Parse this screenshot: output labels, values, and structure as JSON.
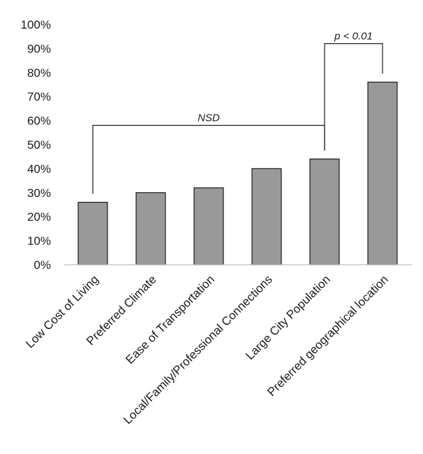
{
  "chart_data": {
    "type": "bar",
    "categories": [
      "Low Cost of Living",
      "Preferred Climate",
      "Ease of Transportation",
      "Local/Family/Professional Connections",
      "Large City Population",
      "Preferred geographical location"
    ],
    "values": [
      26,
      30,
      32,
      40,
      44,
      76
    ],
    "ylim": [
      0,
      100
    ],
    "yticks": [
      "0%",
      "10%",
      "20%",
      "30%",
      "40%",
      "50%",
      "60%",
      "70%",
      "80%",
      "90%",
      "100%"
    ],
    "grid": false,
    "bar_color": "#999999",
    "annotations": [
      {
        "text": "NSD",
        "from_category": 0,
        "to_category": 4,
        "level": 58
      },
      {
        "text": "p < 0.01",
        "from_category": 4,
        "to_category": 5,
        "level": 92
      }
    ]
  }
}
